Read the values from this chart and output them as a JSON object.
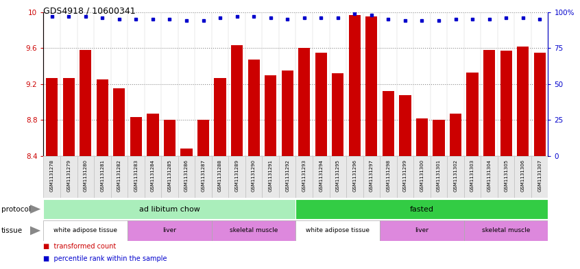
{
  "title": "GDS4918 / 10600341",
  "samples": [
    "GSM1131278",
    "GSM1131279",
    "GSM1131280",
    "GSM1131281",
    "GSM1131282",
    "GSM1131283",
    "GSM1131284",
    "GSM1131285",
    "GSM1131286",
    "GSM1131287",
    "GSM1131288",
    "GSM1131289",
    "GSM1131290",
    "GSM1131291",
    "GSM1131292",
    "GSM1131293",
    "GSM1131294",
    "GSM1131295",
    "GSM1131296",
    "GSM1131297",
    "GSM1131298",
    "GSM1131299",
    "GSM1131300",
    "GSM1131301",
    "GSM1131302",
    "GSM1131303",
    "GSM1131304",
    "GSM1131305",
    "GSM1131306",
    "GSM1131307"
  ],
  "bar_values": [
    9.27,
    9.27,
    9.58,
    9.25,
    9.15,
    8.83,
    8.87,
    8.8,
    8.48,
    8.8,
    9.27,
    9.63,
    9.47,
    9.3,
    9.35,
    9.6,
    9.55,
    9.32,
    9.97,
    9.95,
    9.12,
    9.08,
    8.82,
    8.8,
    8.87,
    9.33,
    9.58,
    9.57,
    9.62,
    9.55
  ],
  "dot_values": [
    97,
    97,
    97,
    96,
    95,
    95,
    95,
    95,
    94,
    94,
    96,
    97,
    97,
    96,
    95,
    96,
    96,
    96,
    99,
    98,
    95,
    94,
    94,
    94,
    95,
    95,
    95,
    96,
    96,
    95
  ],
  "ylim_left": [
    8.4,
    10.0
  ],
  "ylim_right": [
    0,
    100
  ],
  "yticks_left": [
    8.4,
    8.8,
    9.2,
    9.6,
    10.0
  ],
  "ytick_labels_left": [
    "8.4",
    "8.8",
    "9.2",
    "9.6",
    "10"
  ],
  "yticks_right": [
    0,
    25,
    50,
    75,
    100
  ],
  "ytick_labels_right": [
    "0",
    "25",
    "50",
    "75",
    "100%"
  ],
  "bar_color": "#CC0000",
  "dot_color": "#0000CC",
  "grid_color": "#888888",
  "protocol_groups": [
    {
      "label": "ad libitum chow",
      "start": 0,
      "end": 14,
      "color": "#AAEEBB"
    },
    {
      "label": "fasted",
      "start": 15,
      "end": 29,
      "color": "#33CC44"
    }
  ],
  "tissue_groups": [
    {
      "label": "white adipose tissue",
      "start": 0,
      "end": 4,
      "color": "#FFFFFF"
    },
    {
      "label": "liver",
      "start": 5,
      "end": 9,
      "color": "#EE88EE"
    },
    {
      "label": "skeletal muscle",
      "start": 10,
      "end": 14,
      "color": "#EE88EE"
    },
    {
      "label": "white adipose tissue",
      "start": 15,
      "end": 19,
      "color": "#FFFFFF"
    },
    {
      "label": "liver",
      "start": 20,
      "end": 24,
      "color": "#EE88EE"
    },
    {
      "label": "skeletal muscle",
      "start": 25,
      "end": 29,
      "color": "#EE88EE"
    }
  ],
  "legend_bar_label": "transformed count",
  "legend_dot_label": "percentile rank within the sample",
  "sample_box_color": "#DDDDDD",
  "title_fontsize": 9,
  "tick_fontsize": 7.5,
  "label_fontsize": 7.5
}
